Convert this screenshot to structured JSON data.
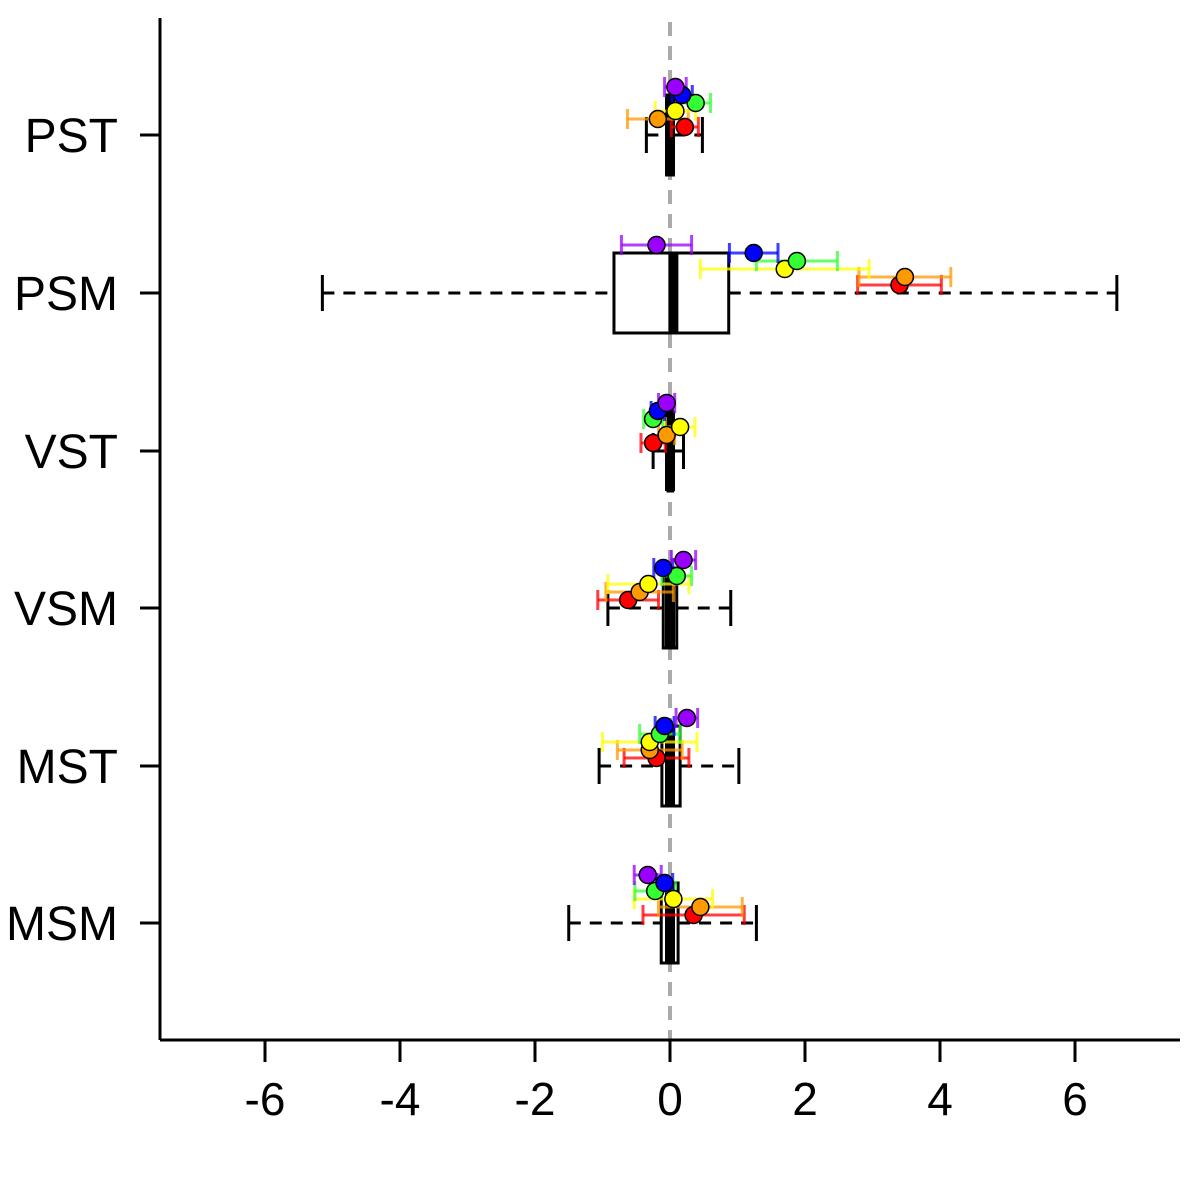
{
  "chart_data": {
    "type": "box",
    "orientation": "horizontal",
    "title": "",
    "xlabel": "",
    "ylabel": "",
    "xlim": [
      -7.6,
      7.6
    ],
    "x_ticks": [
      -6,
      -4,
      -2,
      0,
      2,
      4,
      6
    ],
    "x_tick_labels": [
      "-6",
      "-4",
      "-2",
      "0",
      "2",
      "4",
      "6"
    ],
    "reference_line": 0,
    "reference_line_color": "#aaaaaa",
    "categories": [
      "PST",
      "PSM",
      "VST",
      "VSM",
      "MST",
      "MSM"
    ],
    "boxes": [
      {
        "category": "PST",
        "whisker_low": -0.35,
        "q1": -0.05,
        "median": 0.0,
        "q3": 0.05,
        "whisker_high": 0.48
      },
      {
        "category": "PSM",
        "whisker_low": -5.15,
        "q1": -0.83,
        "median": 0.05,
        "q3": 0.87,
        "whisker_high": 6.62
      },
      {
        "category": "VST",
        "whisker_low": -0.25,
        "q1": -0.03,
        "median": 0.0,
        "q3": 0.04,
        "whisker_high": 0.2
      },
      {
        "category": "VSM",
        "whisker_low": -0.92,
        "q1": -0.1,
        "median": 0.0,
        "q3": 0.1,
        "whisker_high": 0.9
      },
      {
        "category": "MST",
        "whisker_low": -1.05,
        "q1": -0.12,
        "median": 0.0,
        "q3": 0.15,
        "whisker_high": 1.02
      },
      {
        "category": "MSM",
        "whisker_low": -1.5,
        "q1": -0.13,
        "median": 0.0,
        "q3": 0.12,
        "whisker_high": 1.28
      }
    ],
    "point_colors": [
      "#ff0000",
      "#ff9900",
      "#ffff00",
      "#33ff33",
      "#0000ff",
      "#9900ff"
    ],
    "points": [
      {
        "category": "PST",
        "values": [
          0.22,
          -0.18,
          0.08,
          0.38,
          0.18,
          0.08
        ],
        "err": [
          0.2,
          0.45,
          0.3,
          0.22,
          0.15,
          0.16
        ]
      },
      {
        "category": "PSM",
        "values": [
          3.4,
          3.48,
          1.7,
          1.88,
          1.24,
          -0.2
        ],
        "err": [
          0.62,
          0.68,
          1.25,
          0.6,
          0.36,
          0.52
        ]
      },
      {
        "category": "VST",
        "values": [
          -0.25,
          -0.05,
          0.15,
          -0.25,
          -0.18,
          -0.05
        ],
        "err": [
          0.18,
          0.12,
          0.22,
          0.14,
          0.1,
          0.12
        ]
      },
      {
        "category": "VSM",
        "values": [
          -0.62,
          -0.45,
          -0.32,
          0.1,
          -0.1,
          0.2
        ],
        "err": [
          0.45,
          0.5,
          0.6,
          0.22,
          0.14,
          0.18
        ]
      },
      {
        "category": "MST",
        "values": [
          -0.2,
          -0.3,
          -0.3,
          -0.15,
          -0.08,
          0.25
        ],
        "err": [
          0.48,
          0.48,
          0.7,
          0.3,
          0.14,
          0.16
        ]
      },
      {
        "category": "MSM",
        "values": [
          0.35,
          0.45,
          0.05,
          -0.22,
          -0.08,
          -0.33
        ],
        "err": [
          0.75,
          0.62,
          0.58,
          0.3,
          0.12,
          0.2
        ]
      }
    ]
  }
}
